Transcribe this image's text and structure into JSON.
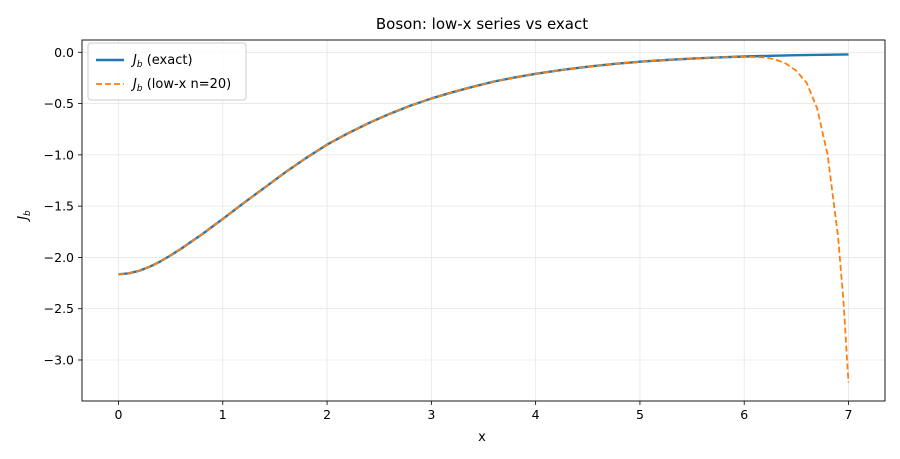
{
  "chart_data": {
    "type": "line",
    "title": "Boson: low-x series vs exact",
    "xlabel": "x",
    "ylabel": "J",
    "ylabel_sub": "b",
    "xlim": [
      -0.35,
      7.35
    ],
    "ylim": [
      -3.4,
      0.12
    ],
    "xticks": [
      0,
      1,
      2,
      3,
      4,
      5,
      6,
      7
    ],
    "yticks": [
      0.0,
      -0.5,
      -1.0,
      -1.5,
      -2.0,
      -2.5,
      -3.0
    ],
    "ytick_labels": [
      "0.0",
      "−0.5",
      "−1.0",
      "−1.5",
      "−2.0",
      "−2.5",
      "−3.0"
    ],
    "grid": true,
    "legend_position": "top-left",
    "series": [
      {
        "name": "J",
        "name_sub": "b",
        "name_suffix": " (exact)",
        "color": "#1f77b4",
        "style": "solid",
        "x": [
          0,
          0.1,
          0.2,
          0.3,
          0.4,
          0.5,
          0.6,
          0.7,
          0.8,
          0.9,
          1.0,
          1.2,
          1.4,
          1.6,
          1.8,
          2.0,
          2.2,
          2.4,
          2.6,
          2.8,
          3.0,
          3.2,
          3.4,
          3.6,
          3.8,
          4.0,
          4.25,
          4.5,
          4.75,
          5.0,
          5.25,
          5.5,
          5.75,
          6.0,
          6.25,
          6.5,
          6.75,
          7.0
        ],
        "y": [
          -2.165,
          -2.155,
          -2.13,
          -2.09,
          -2.04,
          -1.98,
          -1.915,
          -1.845,
          -1.775,
          -1.7,
          -1.625,
          -1.47,
          -1.32,
          -1.17,
          -1.03,
          -0.9,
          -0.79,
          -0.69,
          -0.6,
          -0.52,
          -0.45,
          -0.39,
          -0.335,
          -0.285,
          -0.245,
          -0.21,
          -0.172,
          -0.14,
          -0.113,
          -0.092,
          -0.075,
          -0.061,
          -0.05,
          -0.041,
          -0.034,
          -0.028,
          -0.024,
          -0.021
        ]
      },
      {
        "name": "J",
        "name_sub": "b",
        "name_suffix": " (low-x n=20)",
        "color": "#ff7f0e",
        "style": "dashed",
        "x": [
          0,
          0.1,
          0.2,
          0.3,
          0.4,
          0.5,
          0.6,
          0.7,
          0.8,
          0.9,
          1.0,
          1.2,
          1.4,
          1.6,
          1.8,
          2.0,
          2.2,
          2.4,
          2.6,
          2.8,
          3.0,
          3.2,
          3.4,
          3.6,
          3.8,
          4.0,
          4.25,
          4.5,
          4.75,
          5.0,
          5.25,
          5.5,
          5.75,
          6.0,
          6.2,
          6.3,
          6.4,
          6.5,
          6.6,
          6.7,
          6.8,
          6.9,
          6.95,
          7.0
        ],
        "y": [
          -2.165,
          -2.155,
          -2.13,
          -2.09,
          -2.04,
          -1.98,
          -1.915,
          -1.845,
          -1.775,
          -1.7,
          -1.625,
          -1.47,
          -1.32,
          -1.17,
          -1.03,
          -0.9,
          -0.79,
          -0.69,
          -0.6,
          -0.52,
          -0.45,
          -0.39,
          -0.335,
          -0.285,
          -0.245,
          -0.21,
          -0.172,
          -0.14,
          -0.113,
          -0.092,
          -0.075,
          -0.061,
          -0.05,
          -0.043,
          -0.05,
          -0.07,
          -0.11,
          -0.18,
          -0.3,
          -0.55,
          -1.0,
          -1.8,
          -2.4,
          -3.22
        ]
      }
    ]
  }
}
